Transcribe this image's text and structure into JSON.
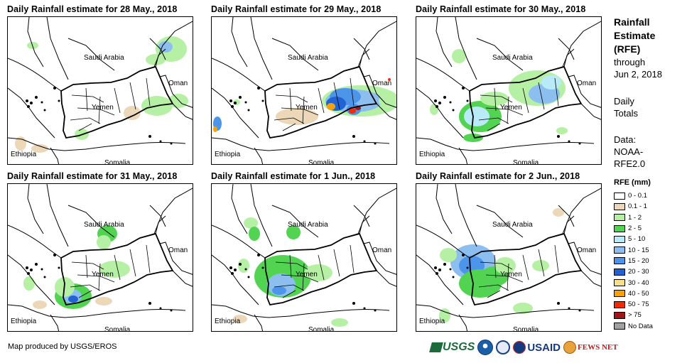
{
  "panels": [
    {
      "title": "Daily Rainfall estimate for 28 May., 2018",
      "key": "p0"
    },
    {
      "title": "Daily Rainfall estimate for 29 May., 2018",
      "key": "p1"
    },
    {
      "title": "Daily Rainfall estimate for 30 May., 2018",
      "key": "p2"
    },
    {
      "title": "Daily Rainfall estimate for 31 May., 2018",
      "key": "p3"
    },
    {
      "title": "Daily Rainfall estimate for 1 Jun., 2018",
      "key": "p4"
    },
    {
      "title": "Daily Rainfall estimate for 2 Jun., 2018",
      "key": "p5"
    }
  ],
  "map_labels": {
    "saudi_arabia": "Saudi Arabia",
    "oman": "Oman",
    "yemen": "Yemen",
    "ethiopia": "Ethiopia",
    "somalia": "Somalia"
  },
  "side": {
    "title_line1": "Rainfall",
    "title_line2": "Estimate",
    "title_line3": "(RFE)",
    "through": "through",
    "date": "Jun 2, 2018",
    "daily": "Daily",
    "totals": "Totals",
    "data_label": "Data:",
    "data_source_1": "NOAA-",
    "data_source_2": "RFE2.0"
  },
  "legend": {
    "title": "RFE (mm)",
    "items": [
      {
        "label": "0 - 0.1",
        "color": "#ffffff"
      },
      {
        "label": "0.1 - 1",
        "color": "#ecd8b8"
      },
      {
        "label": "1 - 2",
        "color": "#b6f0a4"
      },
      {
        "label": "2 - 5",
        "color": "#52d452"
      },
      {
        "label": "5 - 10",
        "color": "#b8eaf7"
      },
      {
        "label": "10 - 15",
        "color": "#8cbff0"
      },
      {
        "label": "15 - 20",
        "color": "#4c95ea"
      },
      {
        "label": "20 - 30",
        "color": "#2163d2"
      },
      {
        "label": "30 - 40",
        "color": "#f7e089"
      },
      {
        "label": "40 - 50",
        "color": "#f7a10d"
      },
      {
        "label": "50 - 75",
        "color": "#f22b05"
      },
      {
        "label": "> 75",
        "color": "#a11616"
      },
      {
        "label": "No Data",
        "color": "#a0a0a0"
      }
    ]
  },
  "credit": "Map produced by USGS/EROS",
  "logos": {
    "usgs": "USGS",
    "usaid": "USAID",
    "fews": "FEWS NET"
  }
}
